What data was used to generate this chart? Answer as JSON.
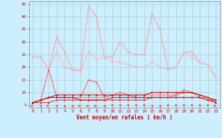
{
  "x": [
    0,
    1,
    2,
    3,
    4,
    5,
    6,
    7,
    8,
    9,
    10,
    11,
    12,
    13,
    14,
    15,
    16,
    17,
    18,
    19,
    20,
    21,
    22,
    23
  ],
  "line1": [
    24,
    24,
    19,
    32,
    26,
    19,
    19,
    44,
    40,
    24,
    24,
    30,
    26,
    25,
    25,
    41,
    35,
    19,
    20,
    26,
    26,
    22,
    21,
    16
  ],
  "line2": [
    24,
    24,
    19,
    26,
    20,
    19,
    18,
    26,
    23,
    24,
    22,
    22,
    21,
    20,
    20,
    22,
    20,
    19,
    20,
    26,
    24,
    22,
    21,
    16
  ],
  "line3": [
    6,
    7,
    19,
    8,
    8,
    8,
    8,
    15,
    14,
    8,
    9,
    10,
    9,
    8,
    8,
    8,
    8,
    8,
    9,
    11,
    10,
    8,
    8,
    6
  ],
  "line4": [
    6,
    7,
    8,
    8,
    8,
    8,
    8,
    8,
    8,
    8,
    9,
    9,
    9,
    9,
    9,
    9,
    9,
    9,
    9,
    10,
    10,
    9,
    8,
    6
  ],
  "line5": [
    6,
    7,
    8,
    8,
    8,
    8,
    7,
    7,
    7,
    7,
    8,
    8,
    8,
    8,
    8,
    8,
    8,
    8,
    8,
    8,
    8,
    8,
    7,
    6
  ],
  "line6": [
    6,
    6,
    6,
    7,
    7,
    7,
    7,
    7,
    7,
    7,
    7,
    7,
    7,
    7,
    7,
    8,
    8,
    8,
    8,
    8,
    8,
    8,
    7,
    7
  ],
  "line7": [
    6,
    7,
    8,
    9,
    9,
    9,
    9,
    9,
    9,
    9,
    9,
    9,
    9,
    9,
    9,
    10,
    10,
    10,
    10,
    10,
    10,
    9,
    8,
    7
  ],
  "bg_color": "#cceeff",
  "grid_color": "#aacccc",
  "line1_color": "#ff9999",
  "line2_color": "#ffaaaa",
  "line3_color": "#ff5555",
  "line4_color": "#ff6666",
  "line5_color": "#cc0000",
  "line6_color": "#dd2222",
  "line7_color": "#bb0000",
  "xlabel": "Vent moyen/en rafales ( km/h )",
  "ylim": [
    4,
    46
  ],
  "yticks": [
    5,
    10,
    15,
    20,
    25,
    30,
    35,
    40,
    45
  ],
  "xticks": [
    0,
    1,
    2,
    3,
    4,
    5,
    6,
    7,
    8,
    9,
    10,
    11,
    12,
    13,
    14,
    15,
    16,
    17,
    18,
    19,
    20,
    21,
    22,
    23
  ]
}
